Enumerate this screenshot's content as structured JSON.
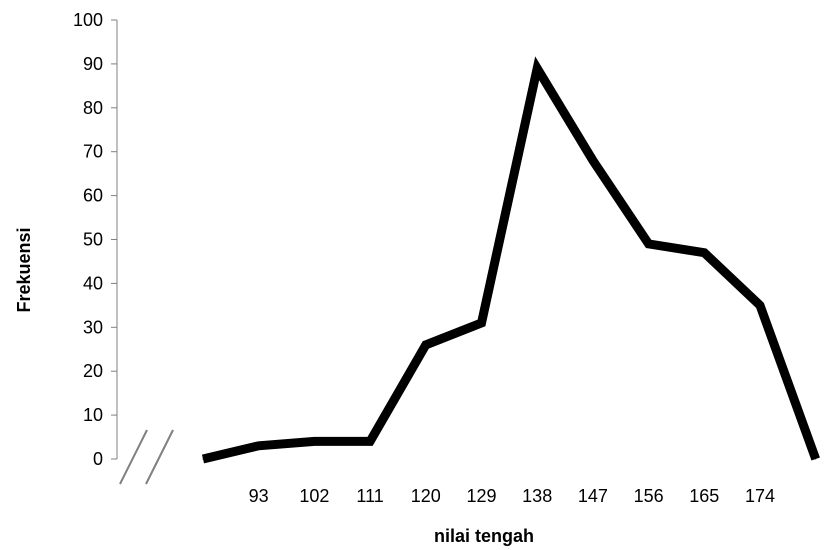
{
  "chart_data": {
    "type": "line",
    "title": "",
    "xlabel": "nilai tengah",
    "ylabel": "Frekuensi",
    "x": [
      "",
      "93",
      "102",
      "111",
      "120",
      "129",
      "138",
      "147",
      "156",
      "165",
      "174",
      ""
    ],
    "values": [
      0,
      3,
      4,
      4,
      26,
      31,
      89,
      68,
      49,
      47,
      35,
      0
    ],
    "ylim": [
      0,
      100
    ],
    "yticks": [
      "0",
      "10",
      "20",
      "30",
      "40",
      "50",
      "60",
      "70",
      "80",
      "90",
      "100"
    ],
    "xticks": [
      "93",
      "102",
      "111",
      "120",
      "129",
      "138",
      "147",
      "156",
      "165",
      "174"
    ],
    "axis_break": true,
    "grid": false,
    "legend": "none",
    "line_color": "#000000",
    "axis_color": "#808080"
  }
}
